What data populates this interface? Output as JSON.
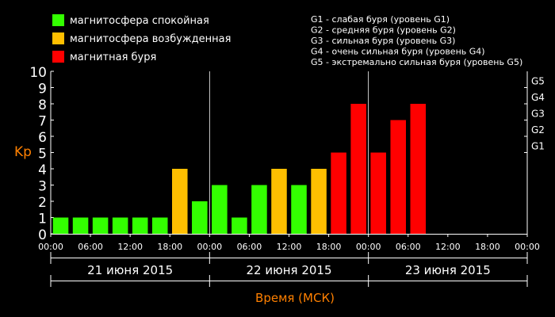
{
  "colors": {
    "background": "#000000",
    "calm": "#33ff00",
    "active": "#ffbf00",
    "storm": "#ff0000",
    "text": "#ffffff",
    "axis_title": "#ff8000",
    "grid": "#555555"
  },
  "legend": {
    "items": [
      {
        "label": "магнитосфера спокойная",
        "color": "#33ff00"
      },
      {
        "label": "магнитосфера возбужденная",
        "color": "#ffbf00"
      },
      {
        "label": "магнитная буря",
        "color": "#ff0000"
      }
    ],
    "storm_levels": [
      "G1 - слабая буря (уровень G1)",
      "G2 - средняя буря (уровень G2)",
      "G3 - сильная буря (уровень G3)",
      "G4 - очень сильная буря (уровень G4)",
      "G5 - экстремально сильная буря (уровень G5)"
    ]
  },
  "chart_data": {
    "type": "bar",
    "ylabel": "Kp",
    "xlabel": "Время (МСК)",
    "ylim": [
      0,
      10
    ],
    "y_ticks": [
      "0",
      "1",
      "2",
      "3",
      "4",
      "5",
      "6",
      "7",
      "8",
      "9",
      "10"
    ],
    "g_ticks": [
      {
        "label": "G1",
        "value": 5
      },
      {
        "label": "G2",
        "value": 6
      },
      {
        "label": "G3",
        "value": 7
      },
      {
        "label": "G4",
        "value": 8
      },
      {
        "label": "G5",
        "value": 9
      }
    ],
    "x_ticks": [
      "00:00",
      "06:00",
      "12:00",
      "18:00",
      "00:00",
      "06:00",
      "12:00",
      "18:00",
      "00:00",
      "06:00",
      "12:00",
      "18:00",
      "00:00"
    ],
    "days": [
      "21 июня 2015",
      "22 июня 2015",
      "23 июня 2015"
    ],
    "interval_hours": 3,
    "values": [
      1,
      1,
      1,
      1,
      1,
      1,
      4,
      2,
      3,
      1,
      3,
      4,
      3,
      4,
      5,
      8,
      5,
      7,
      8
    ],
    "thresholds": {
      "active_min": 4,
      "storm_min": 5
    },
    "grid": false,
    "legend_position": "top-left"
  }
}
